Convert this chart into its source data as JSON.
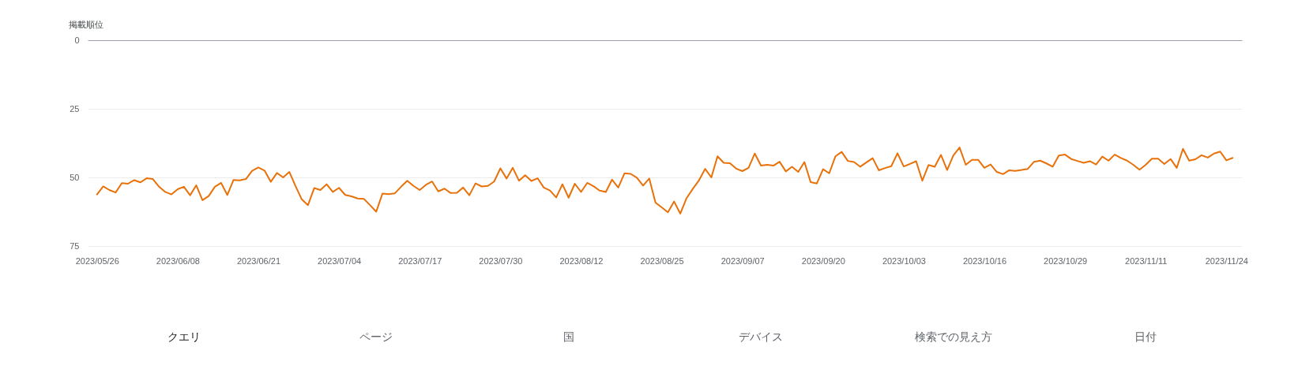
{
  "chart_data": {
    "type": "line",
    "ylabel": "掲載順位",
    "x": [
      "2023-05-26",
      "2023-05-27",
      "2023-05-28",
      "2023-05-29",
      "2023-05-30",
      "2023-05-31",
      "2023-06-01",
      "2023-06-02",
      "2023-06-03",
      "2023-06-04",
      "2023-06-05",
      "2023-06-06",
      "2023-06-07",
      "2023-06-08",
      "2023-06-09",
      "2023-06-10",
      "2023-06-11",
      "2023-06-12",
      "2023-06-13",
      "2023-06-14",
      "2023-06-15",
      "2023-06-16",
      "2023-06-17",
      "2023-06-18",
      "2023-06-19",
      "2023-06-20",
      "2023-06-21",
      "2023-06-22",
      "2023-06-23",
      "2023-06-24",
      "2023-06-25",
      "2023-06-26",
      "2023-06-27",
      "2023-06-28",
      "2023-06-29",
      "2023-06-30",
      "2023-07-01",
      "2023-07-02",
      "2023-07-03",
      "2023-07-04",
      "2023-07-05",
      "2023-07-06",
      "2023-07-07",
      "2023-07-08",
      "2023-07-09",
      "2023-07-10",
      "2023-07-11",
      "2023-07-12",
      "2023-07-13",
      "2023-07-14",
      "2023-07-15",
      "2023-07-16",
      "2023-07-17",
      "2023-07-18",
      "2023-07-19",
      "2023-07-20",
      "2023-07-21",
      "2023-07-22",
      "2023-07-23",
      "2023-07-24",
      "2023-07-25",
      "2023-07-26",
      "2023-07-27",
      "2023-07-28",
      "2023-07-29",
      "2023-07-30",
      "2023-07-31",
      "2023-08-01",
      "2023-08-02",
      "2023-08-03",
      "2023-08-04",
      "2023-08-05",
      "2023-08-06",
      "2023-08-07",
      "2023-08-08",
      "2023-08-09",
      "2023-08-10",
      "2023-08-11",
      "2023-08-12",
      "2023-08-13",
      "2023-08-14",
      "2023-08-15",
      "2023-08-16",
      "2023-08-17",
      "2023-08-18",
      "2023-08-19",
      "2023-08-20",
      "2023-08-21",
      "2023-08-22",
      "2023-08-23",
      "2023-08-24",
      "2023-08-25",
      "2023-08-26",
      "2023-08-27",
      "2023-08-28",
      "2023-08-29",
      "2023-08-30",
      "2023-08-31",
      "2023-09-01",
      "2023-09-02",
      "2023-09-03",
      "2023-09-04",
      "2023-09-05",
      "2023-09-06",
      "2023-09-07",
      "2023-09-08",
      "2023-09-09",
      "2023-09-10",
      "2023-09-11",
      "2023-09-12",
      "2023-09-13",
      "2023-09-14",
      "2023-09-15",
      "2023-09-16",
      "2023-09-17",
      "2023-09-18",
      "2023-09-19",
      "2023-09-20",
      "2023-09-21",
      "2023-09-22",
      "2023-09-23",
      "2023-09-24",
      "2023-09-25",
      "2023-09-26",
      "2023-09-27",
      "2023-09-28",
      "2023-09-29",
      "2023-09-30",
      "2023-10-01",
      "2023-10-02",
      "2023-10-03",
      "2023-10-04",
      "2023-10-05",
      "2023-10-06",
      "2023-10-07",
      "2023-10-08",
      "2023-10-09",
      "2023-10-10",
      "2023-10-11",
      "2023-10-12",
      "2023-10-13",
      "2023-10-14",
      "2023-10-15",
      "2023-10-16",
      "2023-10-17",
      "2023-10-18",
      "2023-10-19",
      "2023-10-20",
      "2023-10-21",
      "2023-10-22",
      "2023-10-23",
      "2023-10-24",
      "2023-10-25",
      "2023-10-26",
      "2023-10-27",
      "2023-10-28",
      "2023-10-29",
      "2023-10-30",
      "2023-10-31",
      "2023-11-01",
      "2023-11-02",
      "2023-11-03",
      "2023-11-04",
      "2023-11-05",
      "2023-11-06",
      "2023-11-07",
      "2023-11-08",
      "2023-11-09",
      "2023-11-10",
      "2023-11-11",
      "2023-11-12",
      "2023-11-13",
      "2023-11-14",
      "2023-11-15",
      "2023-11-16",
      "2023-11-17",
      "2023-11-18",
      "2023-11-19",
      "2023-11-20",
      "2023-11-21",
      "2023-11-22",
      "2023-11-23",
      "2023-11-24",
      "2023-11-25"
    ],
    "series": [
      {
        "color": "#e8710a",
        "values": [
          56.2,
          53.3,
          54.6,
          55.5,
          52.1,
          52.3,
          51.0,
          51.8,
          50.3,
          50.6,
          53.4,
          55.3,
          56.2,
          54.3,
          53.4,
          56.5,
          52.9,
          58.3,
          56.8,
          53.4,
          52.0,
          56.4,
          50.9,
          51.1,
          50.6,
          47.6,
          46.4,
          47.5,
          51.6,
          48.4,
          50.0,
          48.0,
          53.2,
          58.0,
          60.1,
          53.9,
          54.6,
          52.5,
          55.3,
          53.8,
          56.4,
          56.9,
          57.7,
          57.8,
          60.1,
          62.5,
          55.9,
          56.1,
          55.8,
          53.4,
          51.2,
          53.1,
          54.6,
          52.7,
          51.5,
          55.1,
          54.1,
          55.7,
          55.6,
          53.7,
          56.5,
          52.2,
          53.3,
          53.1,
          51.5,
          46.7,
          50.4,
          46.5,
          51.2,
          49.2,
          51.3,
          50.3,
          53.7,
          54.8,
          57.3,
          52.5,
          57.4,
          52.3,
          55.3,
          52.0,
          53.2,
          54.8,
          55.3,
          50.8,
          53.7,
          48.5,
          48.7,
          50.1,
          53.0,
          50.4,
          59.2,
          60.9,
          62.7,
          58.8,
          63.2,
          57.6,
          54.2,
          51.1,
          46.9,
          50.0,
          42.3,
          44.7,
          44.8,
          46.8,
          47.7,
          46.5,
          41.3,
          45.7,
          45.4,
          45.7,
          44.3,
          47.8,
          46.1,
          48.0,
          44.4,
          51.7,
          52.2,
          47.0,
          48.5,
          42.3,
          40.7,
          44.0,
          44.4,
          46.1,
          44.5,
          43.0,
          47.4,
          46.6,
          45.9,
          41.2,
          46.0,
          45.1,
          44.1,
          51.2,
          45.5,
          46.1,
          41.8,
          47.3,
          42.0,
          39.1,
          45.4,
          43.6,
          43.6,
          46.5,
          45.3,
          48.0,
          48.8,
          47.4,
          47.6,
          47.3,
          46.9,
          44.3,
          43.9,
          44.9,
          46.1,
          42.0,
          41.7,
          43.3,
          44.0,
          44.7,
          44.1,
          45.3,
          42.4,
          43.9,
          41.7,
          42.9,
          43.9,
          45.4,
          47.2,
          45.4,
          43.2,
          43.2,
          45.1,
          43.3,
          46.5,
          39.6,
          43.9,
          43.4,
          41.9,
          42.8,
          41.3,
          40.6,
          43.8,
          42.9
        ]
      }
    ],
    "xlim": [
      "2023-05-24T12:00",
      "2023-11-26T12:00"
    ],
    "xticks": [
      {
        "value": "2023-05-26",
        "label": "2023/05/26"
      },
      {
        "value": "2023-06-08",
        "label": "2023/06/08"
      },
      {
        "value": "2023-06-21",
        "label": "2023/06/21"
      },
      {
        "value": "2023-07-04",
        "label": "2023/07/04"
      },
      {
        "value": "2023-07-17",
        "label": "2023/07/17"
      },
      {
        "value": "2023-07-30",
        "label": "2023/07/30"
      },
      {
        "value": "2023-08-12",
        "label": "2023/08/12"
      },
      {
        "value": "2023-08-25",
        "label": "2023/08/25"
      },
      {
        "value": "2023-09-07",
        "label": "2023/09/07"
      },
      {
        "value": "2023-09-20",
        "label": "2023/09/20"
      },
      {
        "value": "2023-10-03",
        "label": "2023/10/03"
      },
      {
        "value": "2023-10-16",
        "label": "2023/10/16"
      },
      {
        "value": "2023-10-29",
        "label": "2023/10/29"
      },
      {
        "value": "2023-11-11",
        "label": "2023/11/11"
      },
      {
        "value": "2023-11-24",
        "label": "2023/11/24"
      }
    ],
    "ylim": [
      75,
      0
    ],
    "yticks": [
      0,
      25,
      50,
      75
    ],
    "grid": "y",
    "line_style": "solid",
    "annotations": [
      "クエリ",
      "ページ",
      "国",
      "デバイス",
      "検索での見え方",
      "日付"
    ]
  }
}
